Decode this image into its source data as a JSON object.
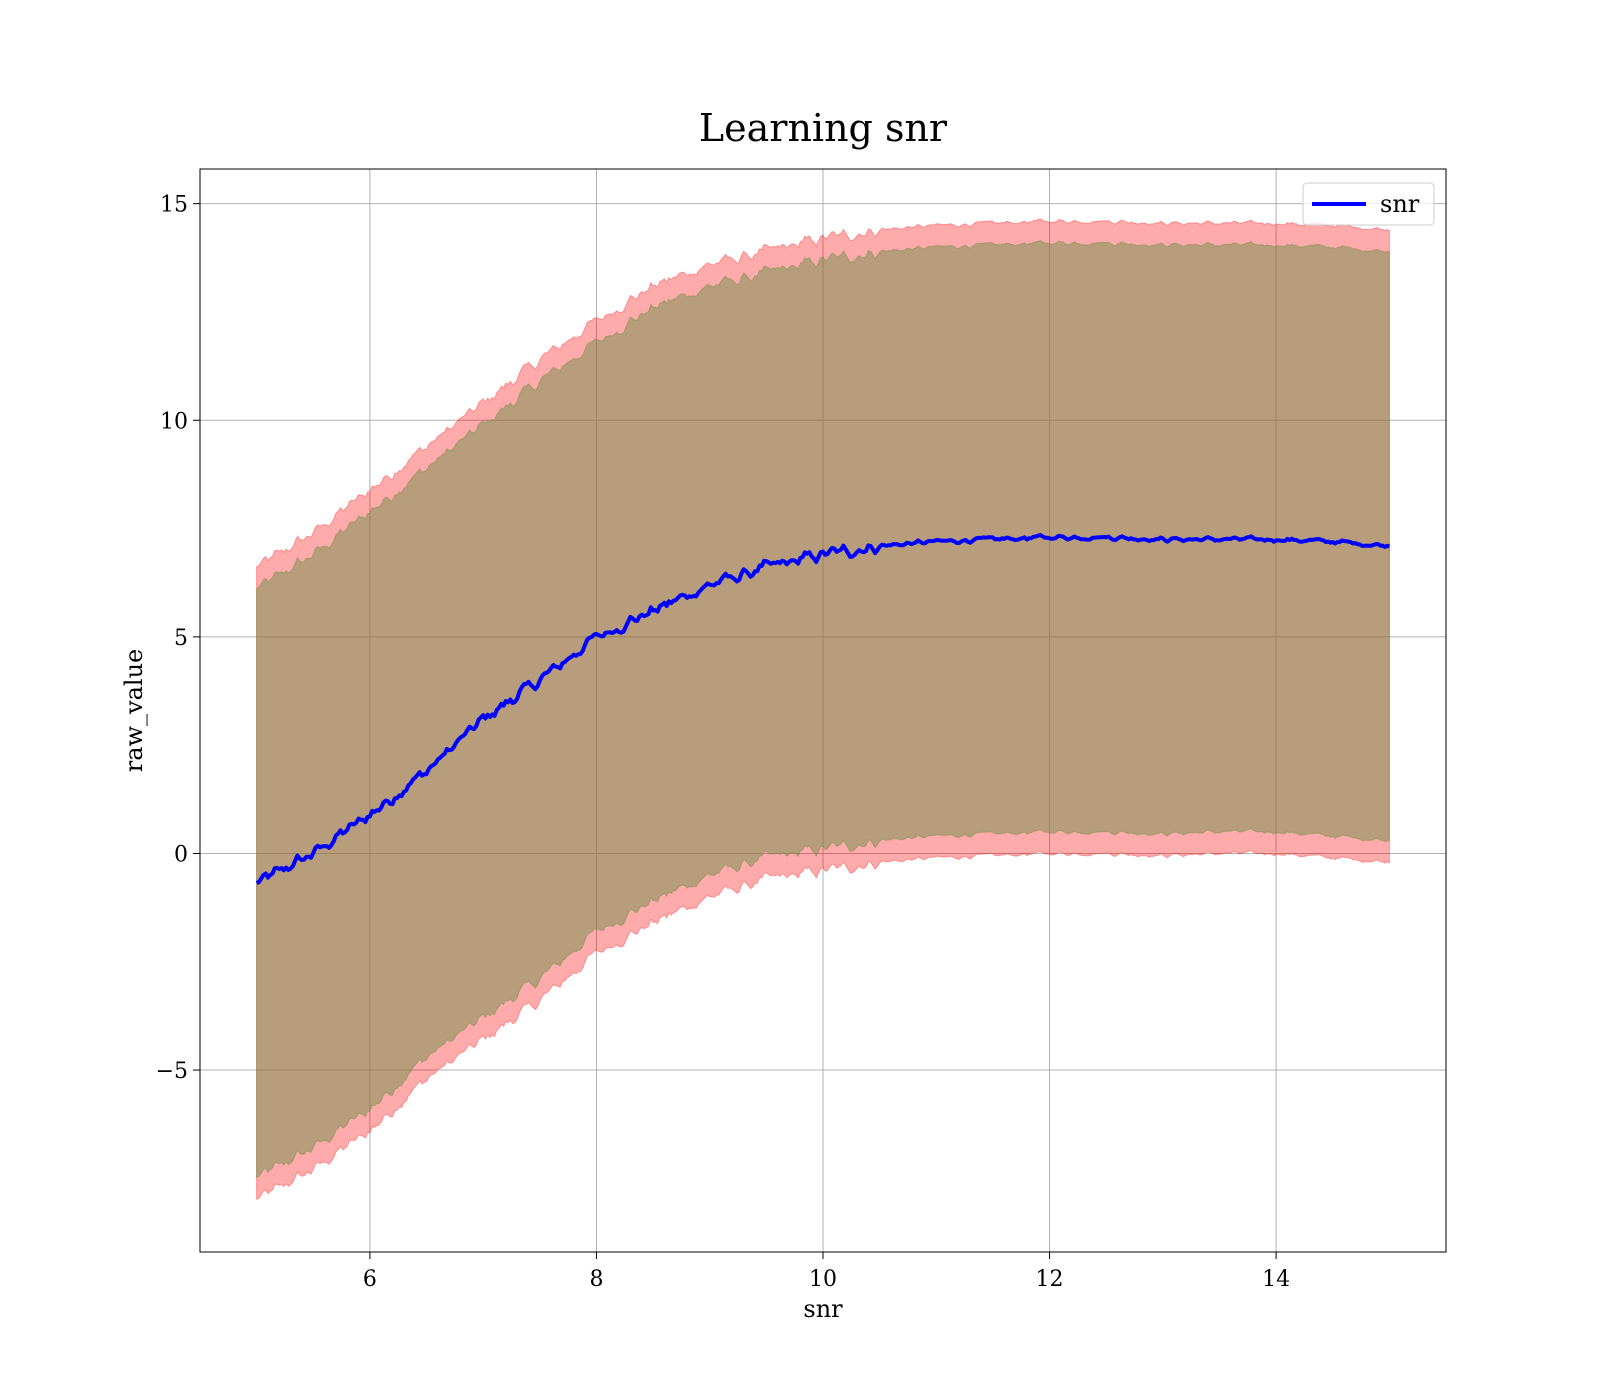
{
  "chart_data": {
    "type": "line",
    "title": "Learning snr",
    "xlabel": "snr",
    "ylabel": "raw_value",
    "xlim": [
      4.5,
      15.5
    ],
    "ylim": [
      -9.2,
      15.8
    ],
    "xticks": [
      6,
      8,
      10,
      12,
      14
    ],
    "xtick_labels": [
      "6",
      "8",
      "10",
      "12",
      "14"
    ],
    "yticks": [
      -5,
      0,
      5,
      10,
      15
    ],
    "ytick_labels": [
      "−5",
      "0",
      "5",
      "10",
      "15"
    ],
    "grid": true,
    "legend_position": "upper-right",
    "legend": [
      "snr"
    ],
    "series": [
      {
        "name": "snr",
        "color": "#0000ff",
        "x": [
          5.0,
          5.5,
          6.0,
          6.5,
          7.0,
          7.5,
          8.0,
          8.5,
          9.0,
          9.5,
          10.0,
          10.5,
          11.0,
          11.5,
          12.0,
          12.5,
          13.0,
          13.5,
          14.0,
          14.5,
          15.0
        ],
        "y": [
          -0.7,
          0.0,
          0.9,
          1.9,
          3.1,
          4.0,
          5.0,
          5.6,
          6.2,
          6.6,
          6.9,
          7.1,
          7.2,
          7.25,
          7.3,
          7.3,
          7.25,
          7.25,
          7.25,
          7.2,
          7.1
        ]
      }
    ],
    "bands": [
      {
        "role": "outer",
        "color": "#ff0000",
        "opacity": 0.33,
        "x": [
          5.0,
          5.5,
          6.0,
          6.5,
          7.0,
          7.5,
          8.0,
          8.5,
          9.0,
          9.5,
          10.0,
          10.5,
          11.0,
          11.5,
          12.0,
          12.5,
          13.0,
          13.5,
          14.0,
          14.5,
          15.0
        ],
        "upper": [
          6.6,
          7.4,
          8.4,
          9.4,
          10.4,
          11.4,
          12.3,
          13.1,
          13.6,
          13.9,
          14.2,
          14.4,
          14.5,
          14.55,
          14.6,
          14.6,
          14.55,
          14.55,
          14.55,
          14.5,
          14.4
        ],
        "lower": [
          -8.0,
          -7.3,
          -6.4,
          -5.2,
          -4.3,
          -3.4,
          -2.3,
          -1.6,
          -1.0,
          -0.6,
          -0.4,
          -0.2,
          -0.1,
          -0.05,
          0.0,
          0.0,
          -0.05,
          0.0,
          0.0,
          -0.1,
          -0.2
        ]
      },
      {
        "role": "inner",
        "color": "#708f4b",
        "opacity": 0.5,
        "x": [
          5.0,
          5.5,
          6.0,
          6.5,
          7.0,
          7.5,
          8.0,
          8.5,
          9.0,
          9.5,
          10.0,
          10.5,
          11.0,
          11.5,
          12.0,
          12.5,
          13.0,
          13.5,
          14.0,
          14.5,
          15.0
        ],
        "upper": [
          6.1,
          6.9,
          7.9,
          8.9,
          9.9,
          10.9,
          11.8,
          12.6,
          13.1,
          13.4,
          13.7,
          13.9,
          14.0,
          14.05,
          14.1,
          14.1,
          14.05,
          14.05,
          14.05,
          14.0,
          13.9
        ],
        "lower": [
          -7.5,
          -6.8,
          -5.9,
          -4.7,
          -3.8,
          -2.9,
          -1.8,
          -1.1,
          -0.5,
          -0.1,
          0.1,
          0.3,
          0.4,
          0.45,
          0.5,
          0.5,
          0.45,
          0.5,
          0.5,
          0.4,
          0.3
        ]
      }
    ]
  }
}
